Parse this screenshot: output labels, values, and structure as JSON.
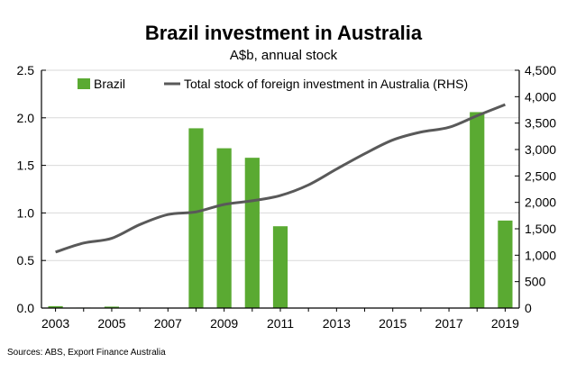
{
  "chart_data": {
    "type": "bar+line",
    "title": "Brazil investment in Australia",
    "subtitle": "A$b, annual stock",
    "source": "Sources: ABS, Export Finance Australia",
    "grid": true,
    "legend_position": "top",
    "colors": {
      "bar": "#5aaa32",
      "line": "#595959",
      "grid": "#d9d9d9",
      "axis": "#000000"
    },
    "years": [
      2003,
      2004,
      2005,
      2006,
      2007,
      2008,
      2009,
      2010,
      2011,
      2012,
      2013,
      2014,
      2015,
      2016,
      2017,
      2018,
      2019
    ],
    "x_tick_labels": [
      "2003",
      "2005",
      "2007",
      "2009",
      "2011",
      "2013",
      "2015",
      "2017",
      "2019"
    ],
    "y_left": {
      "ylim": [
        0,
        2.5
      ],
      "ticks": [
        "0.0",
        "0.5",
        "1.0",
        "1.5",
        "2.0",
        "2.5"
      ]
    },
    "y_right": {
      "ylim": [
        0,
        4500
      ],
      "ticks": [
        "0",
        "500",
        "1,000",
        "1,500",
        "2,000",
        "2,500",
        "3,000",
        "3,500",
        "4,000",
        "4,500"
      ]
    },
    "series": [
      {
        "name": "Brazil",
        "kind": "bar",
        "axis": "left",
        "values": [
          0.02,
          0.005,
          0.015,
          0.0,
          0.0,
          1.89,
          1.68,
          1.58,
          0.86,
          0.0,
          0.0,
          0.0,
          0.0,
          0.0,
          0.0,
          2.06,
          0.92
        ]
      },
      {
        "name": "Total stock of foreign investment in Australia (RHS)",
        "kind": "line",
        "axis": "right",
        "values": [
          1060,
          1230,
          1320,
          1580,
          1770,
          1820,
          1960,
          2030,
          2130,
          2330,
          2630,
          2920,
          3180,
          3330,
          3420,
          3640,
          3850
        ]
      }
    ]
  }
}
